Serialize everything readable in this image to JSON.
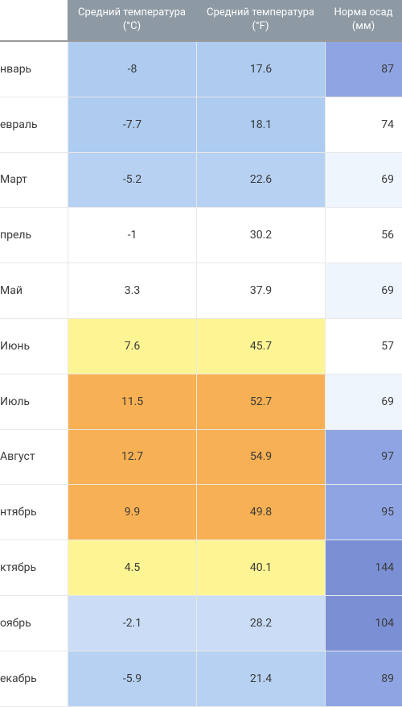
{
  "headers": {
    "month": "",
    "temp_c": "Средний температура (°C)",
    "temp_f": "Средний температура (°F)",
    "precip": "Норма осад (мм)"
  },
  "header_bg": "#8d99a3",
  "header_fg": "#ffffff",
  "border_color": "#e8e8e8",
  "cell_text_color": "#3a3a3a",
  "rows": [
    {
      "month": "нварь",
      "temp_c": "-8",
      "temp_f": "17.6",
      "precip": "87",
      "temp_bg": "#aecbf0",
      "precip_bg": "#8fa5e3"
    },
    {
      "month": "евраль",
      "temp_c": "-7.7",
      "temp_f": "18.1",
      "precip": "74",
      "temp_bg": "#aecbf0",
      "precip_bg": "#ffffff"
    },
    {
      "month": "Март",
      "temp_c": "-5.2",
      "temp_f": "22.6",
      "precip": "69",
      "temp_bg": "#b7d1f3",
      "precip_bg": "#eff5fd"
    },
    {
      "month": "прель",
      "temp_c": "-1",
      "temp_f": "30.2",
      "precip": "56",
      "temp_bg": "#ffffff",
      "precip_bg": "#ffffff"
    },
    {
      "month": "Май",
      "temp_c": "3.3",
      "temp_f": "37.9",
      "precip": "69",
      "temp_bg": "#ffffff",
      "precip_bg": "#eff5fd"
    },
    {
      "month": "Июнь",
      "temp_c": "7.6",
      "temp_f": "45.7",
      "precip": "57",
      "temp_bg": "#fdf594",
      "precip_bg": "#ffffff"
    },
    {
      "month": "Июль",
      "temp_c": "11.5",
      "temp_f": "52.7",
      "precip": "69",
      "temp_bg": "#f7b053",
      "precip_bg": "#eff5fd"
    },
    {
      "month": "Август",
      "temp_c": "12.7",
      "temp_f": "54.9",
      "precip": "97",
      "temp_bg": "#f7b053",
      "precip_bg": "#8fa5e3"
    },
    {
      "month": "нтябрь",
      "temp_c": "9.9",
      "temp_f": "49.8",
      "precip": "95",
      "temp_bg": "#f7b053",
      "precip_bg": "#8fa5e3"
    },
    {
      "month": "ктябрь",
      "temp_c": "4.5",
      "temp_f": "40.1",
      "precip": "144",
      "temp_bg": "#fdf594",
      "precip_bg": "#7b8fd4"
    },
    {
      "month": "оябрь",
      "temp_c": "-2.1",
      "temp_f": "28.2",
      "precip": "104",
      "temp_bg": "#cadcf6",
      "precip_bg": "#7b8fd4"
    },
    {
      "month": "екабрь",
      "temp_c": "-5.9",
      "temp_f": "21.4",
      "precip": "89",
      "temp_bg": "#b7d1f3",
      "precip_bg": "#8fa5e3"
    }
  ]
}
